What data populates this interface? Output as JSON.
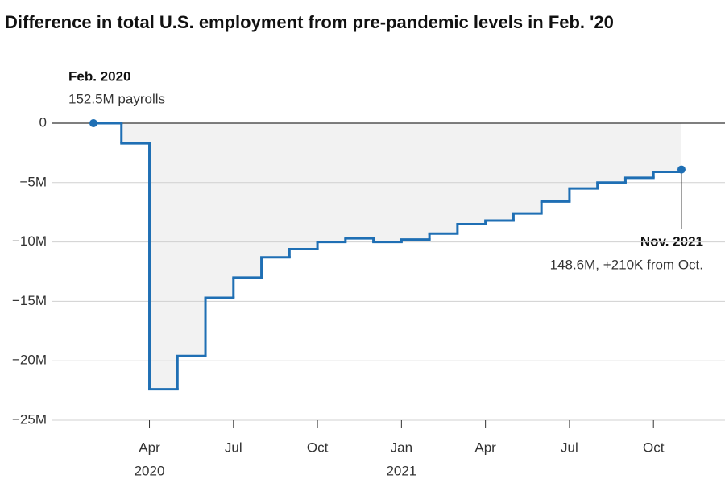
{
  "chart_data": {
    "type": "step",
    "title": "Difference in total U.S. employment from pre-pandemic levels in Feb. '20",
    "x": [
      "2020-02",
      "2020-03",
      "2020-04",
      "2020-05",
      "2020-06",
      "2020-07",
      "2020-08",
      "2020-09",
      "2020-10",
      "2020-11",
      "2020-12",
      "2021-01",
      "2021-02",
      "2021-03",
      "2021-04",
      "2021-05",
      "2021-06",
      "2021-07",
      "2021-08",
      "2021-09",
      "2021-10",
      "2021-11"
    ],
    "values": [
      0,
      -1.7,
      -22.4,
      -19.6,
      -14.7,
      -13.0,
      -11.3,
      -10.6,
      -10.0,
      -9.7,
      -10.0,
      -9.8,
      -9.3,
      -8.5,
      -8.2,
      -7.6,
      -6.6,
      -5.5,
      -5.0,
      -4.6,
      -4.1,
      -3.9
    ],
    "color": "#1f6fb4",
    "area_color": "#f2f2f2",
    "ylim": [
      -25,
      0
    ],
    "yticks": [
      0,
      {
        "value": -5,
        "label": "−5M"
      },
      {
        "value": -10,
        "label": "−10M"
      },
      {
        "value": -15,
        "label": "−15M"
      },
      {
        "value": -20,
        "label": "−20M"
      },
      {
        "value": -25,
        "label": "−25M"
      }
    ],
    "xticks": [
      {
        "value": "2020-04",
        "label": "Apr"
      },
      {
        "value": "2020-07",
        "label": "Jul"
      },
      {
        "value": "2020-10",
        "label": "Oct"
      },
      {
        "value": "2021-01",
        "label": "Jan"
      },
      {
        "value": "2021-04",
        "label": "Apr"
      },
      {
        "value": "2021-07",
        "label": "Jul"
      },
      {
        "value": "2021-10",
        "label": "Oct"
      }
    ],
    "year_labels": [
      {
        "value": "2020-04",
        "label": "2020"
      },
      {
        "value": "2021-01",
        "label": "2021"
      }
    ],
    "grid": true,
    "annotations": [
      {
        "title": "Feb. 2020",
        "text": "152.5M payrolls"
      },
      {
        "title": "Nov. 2021",
        "text": "148.6M, +210K from Oct."
      }
    ]
  }
}
